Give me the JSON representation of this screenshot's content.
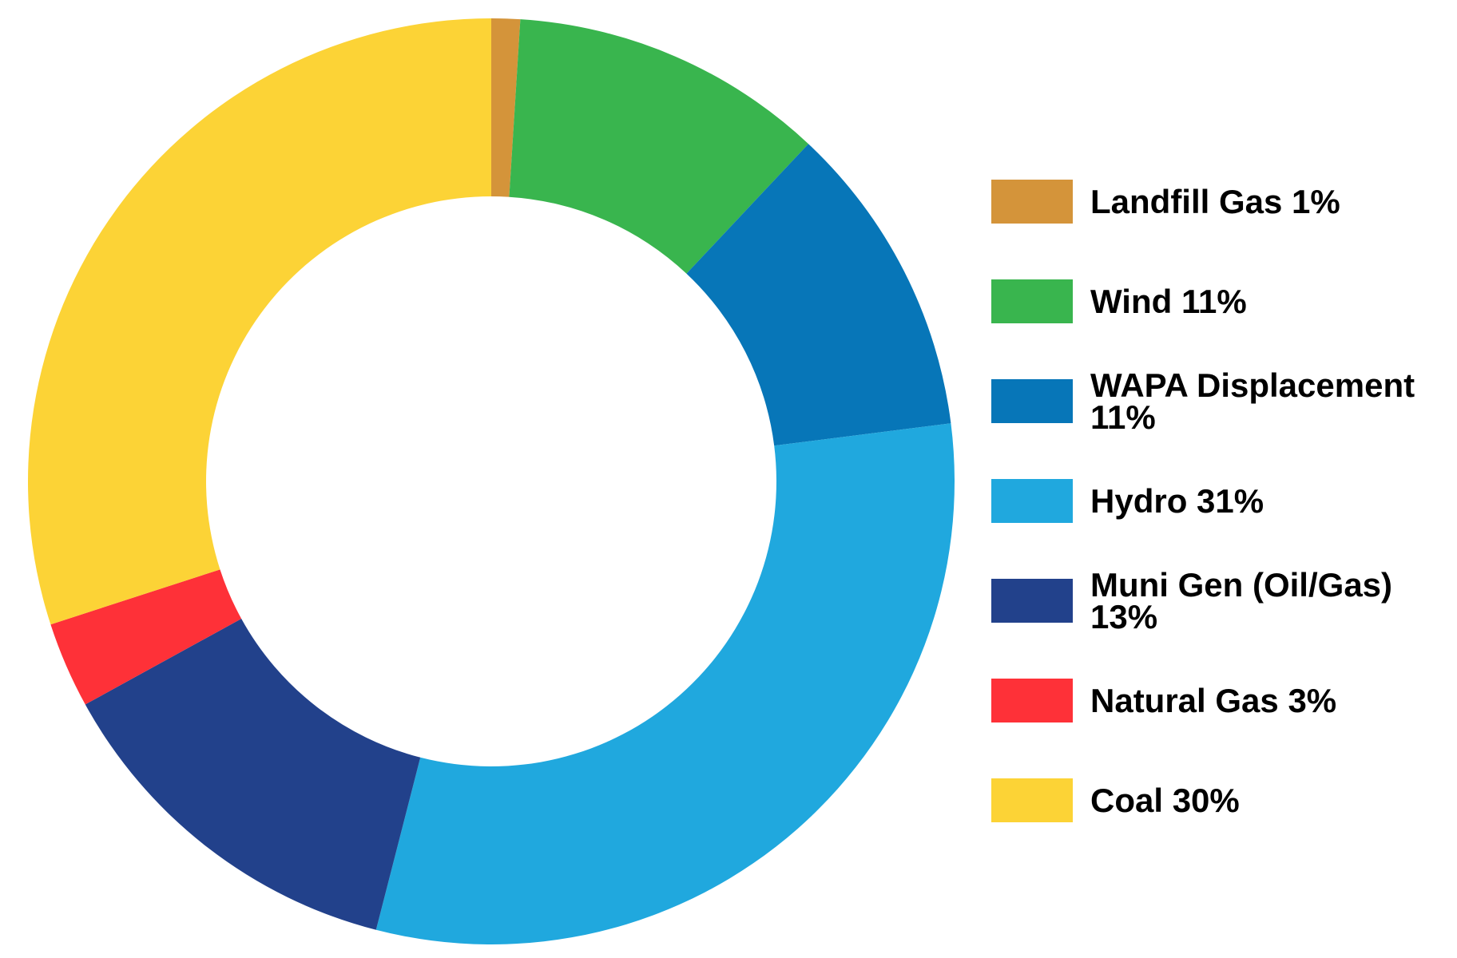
{
  "chart_data": {
    "type": "donut",
    "categories": [
      "Landfill Gas",
      "Wind",
      "WAPA Displacement",
      "Hydro",
      "Muni Gen (Oil/Gas)",
      "Natural Gas",
      "Coal"
    ],
    "values": [
      1,
      11,
      11,
      31,
      13,
      3,
      30
    ],
    "value_labels": [
      "1%",
      "11%",
      "11%",
      "31%",
      "13%",
      "3%",
      "30%"
    ],
    "colors": [
      "#d4943a",
      "#39b54e",
      "#0776b8",
      "#20a8de",
      "#22418b",
      "#fe3138",
      "#fcd336"
    ],
    "legend": "right"
  }
}
